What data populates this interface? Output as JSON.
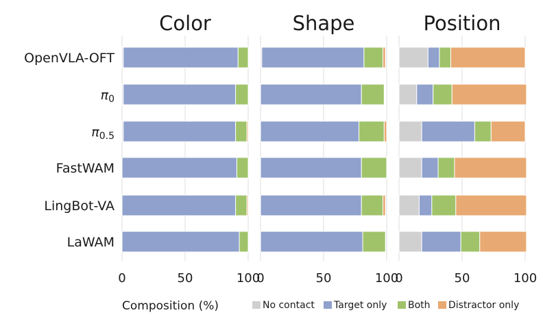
{
  "chart_data": {
    "type": "bar",
    "orientation": "horizontal",
    "stacked": true,
    "xlabel": "Composition (%)",
    "xlim": [
      0,
      100
    ],
    "xticks": [
      "0",
      "50",
      "100"
    ],
    "grid": true,
    "legend_position": "bottom-right",
    "categories": [
      "OpenVLA-OFT",
      "π0",
      "π0.5",
      "FastWAM",
      "LingBot-VA",
      "LaWAM"
    ],
    "category_labels": [
      {
        "base": "OpenVLA-OFT",
        "sub": ""
      },
      {
        "base": "π",
        "sub": "0"
      },
      {
        "base": "π",
        "sub": "0.5"
      },
      {
        "base": "FastWAM",
        "sub": ""
      },
      {
        "base": "LingBot-VA",
        "sub": ""
      },
      {
        "base": "LaWAM",
        "sub": ""
      }
    ],
    "series": [
      {
        "name": "No contact",
        "color": "#d0d0d0"
      },
      {
        "name": "Target only",
        "color": "#8fa1cc"
      },
      {
        "name": "Both",
        "color": "#a0c36a"
      },
      {
        "name": "Distractor only",
        "color": "#e8a972"
      }
    ],
    "panels": [
      {
        "title": "Color",
        "values": [
          [
            1,
            91,
            8,
            0
          ],
          [
            1,
            89,
            10,
            0
          ],
          [
            1,
            89,
            9,
            1
          ],
          [
            0,
            91,
            9,
            0
          ],
          [
            0,
            90,
            9,
            1
          ],
          [
            0,
            93,
            7,
            0
          ]
        ]
      },
      {
        "title": "Shape",
        "values": [
          [
            1,
            81,
            15,
            2
          ],
          [
            0,
            80,
            18,
            0
          ],
          [
            0,
            78,
            20,
            2
          ],
          [
            0,
            80,
            20,
            0
          ],
          [
            0,
            80,
            17,
            2
          ],
          [
            0,
            81,
            18,
            0
          ]
        ]
      },
      {
        "title": "Position",
        "values": [
          [
            23,
            9,
            9,
            59
          ],
          [
            14,
            13,
            15,
            59
          ],
          [
            18,
            42,
            13,
            27
          ],
          [
            18,
            13,
            13,
            57
          ],
          [
            16,
            10,
            19,
            56
          ],
          [
            18,
            31,
            15,
            37
          ]
        ]
      }
    ]
  }
}
